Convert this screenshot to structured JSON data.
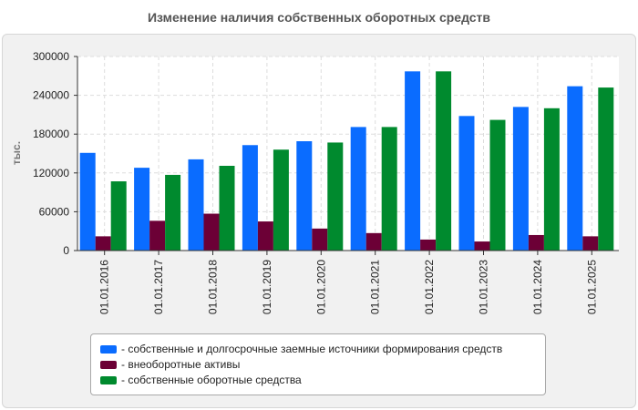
{
  "chart_data": {
    "type": "bar",
    "title": "Изменение наличия собственных оборотных средств",
    "ylabel": "тыс.",
    "xlabel": "",
    "ylim": [
      0,
      300000
    ],
    "yticks": [
      0,
      60000,
      120000,
      180000,
      240000,
      300000
    ],
    "grid": true,
    "categories": [
      "01.01.2016",
      "01.01.2017",
      "01.01.2018",
      "01.01.2019",
      "01.01.2020",
      "01.01.2021",
      "01.01.2022",
      "01.01.2023",
      "01.01.2024",
      "01.01.2025"
    ],
    "series": [
      {
        "name": "- собственные и долгосрочные заемные источники формирования средств",
        "color": "#0a6cff",
        "values": [
          151000,
          128000,
          141000,
          163000,
          169000,
          191000,
          277000,
          208000,
          222000,
          254000
        ]
      },
      {
        "name": "- внеоборотные активы",
        "color": "#6c0036",
        "values": [
          22000,
          46000,
          57000,
          45000,
          34000,
          27000,
          17000,
          14000,
          24000,
          22000
        ]
      },
      {
        "name": "- собственные оборотные средства",
        "color": "#008a2e",
        "values": [
          107000,
          117000,
          131000,
          156000,
          167000,
          191000,
          277000,
          202000,
          220000,
          252000
        ]
      }
    ],
    "legend_position": "bottom"
  }
}
